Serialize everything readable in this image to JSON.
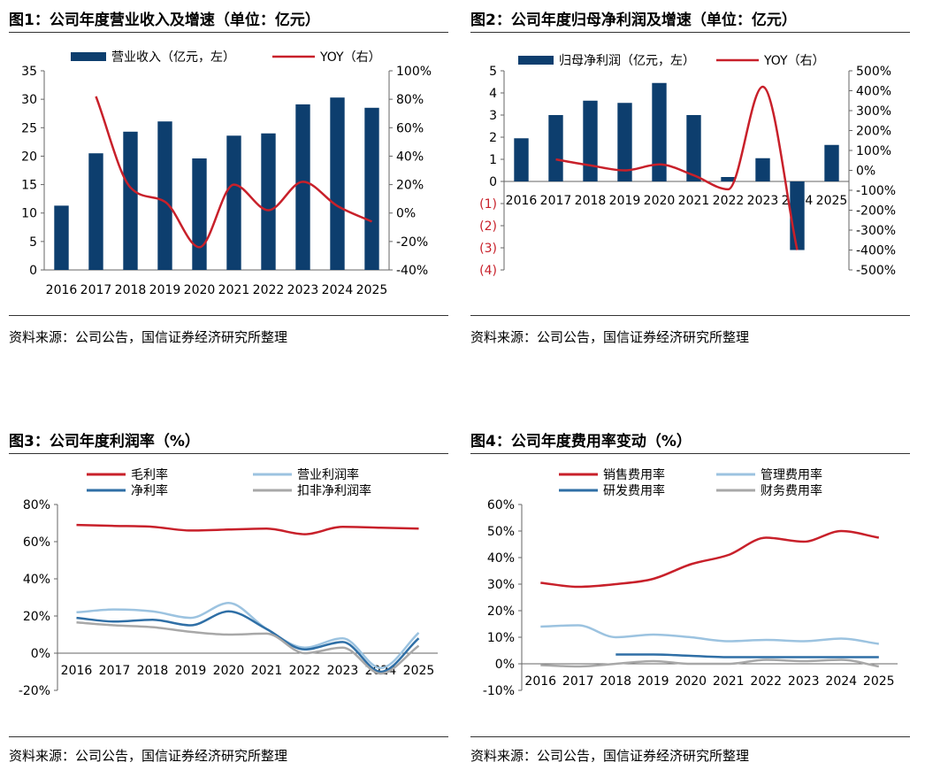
{
  "colors": {
    "navy": "#0d3e6e",
    "red": "#c8202a",
    "lightblue": "#9cc3e0",
    "blue": "#2f6fa6",
    "gray": "#a8a8a8",
    "neg": "#c8202a"
  },
  "source_text": "资料来源：公司公告，国信证券经济研究所整理",
  "chart_data": [
    {
      "id": "fig1",
      "title": "图1：公司年度营业收入及增速（单位：亿元）",
      "type": "bar+line",
      "categories": [
        "2016",
        "2017",
        "2018",
        "2019",
        "2020",
        "2021",
        "2022",
        "2023",
        "2024",
        "2025"
      ],
      "y_left": {
        "min": 0,
        "max": 35,
        "ticks": [
          0,
          5,
          10,
          15,
          20,
          25,
          30,
          35
        ],
        "labels": [
          "0",
          "5",
          "10",
          "15",
          "20",
          "25",
          "30",
          "35"
        ]
      },
      "y_right": {
        "min": -40,
        "max": 100,
        "ticks": [
          -40,
          -20,
          0,
          20,
          40,
          60,
          80,
          100
        ],
        "labels": [
          "-40%",
          "-20%",
          "0%",
          "20%",
          "40%",
          "60%",
          "80%",
          "100%"
        ]
      },
      "series": [
        {
          "name": "营业收入（亿元，左）",
          "type": "bar",
          "axis": "left",
          "color": "#0d3e6e",
          "values": [
            11.3,
            20.5,
            24.3,
            26.1,
            19.6,
            23.6,
            24.0,
            29.1,
            30.3,
            28.5
          ]
        },
        {
          "name": "YOY（右）",
          "type": "line",
          "axis": "right",
          "color": "#c8202a",
          "values": [
            null,
            82,
            18,
            8,
            -24,
            20,
            2,
            22,
            5,
            -6
          ]
        }
      ]
    },
    {
      "id": "fig2",
      "title": "图2：公司年度归母净利润及增速（单位：亿元）",
      "type": "bar+line",
      "categories": [
        "2016",
        "2017",
        "2018",
        "2019",
        "2020",
        "2021",
        "2022",
        "2023",
        "2024",
        "2025"
      ],
      "y_left": {
        "min": -4,
        "max": 5,
        "ticks": [
          -4,
          -3,
          -2,
          -1,
          0,
          1,
          2,
          3,
          4,
          5
        ],
        "labels": [
          "(4)",
          "(3)",
          "(2)",
          "(1)",
          "0",
          "1",
          "2",
          "3",
          "4",
          "5"
        ]
      },
      "y_right": {
        "min": -500,
        "max": 500,
        "ticks": [
          -500,
          -400,
          -300,
          -200,
          -100,
          0,
          100,
          200,
          300,
          400,
          500
        ],
        "labels": [
          "-500%",
          "-400%",
          "-300%",
          "-200%",
          "-100%",
          "0%",
          "100%",
          "200%",
          "300%",
          "400%",
          "500%"
        ]
      },
      "series": [
        {
          "name": "归母净利润（亿元，左）",
          "type": "bar",
          "axis": "left",
          "color": "#0d3e6e",
          "values": [
            1.95,
            3.0,
            3.65,
            3.55,
            4.45,
            3.0,
            0.2,
            1.05,
            -3.1,
            1.65
          ]
        },
        {
          "name": "YOY（右）",
          "type": "line",
          "axis": "right",
          "color": "#c8202a",
          "values": [
            null,
            55,
            25,
            0,
            30,
            -25,
            -95,
            420,
            -400,
            null
          ]
        }
      ]
    },
    {
      "id": "fig3",
      "title": "图3：公司年度利润率（%）",
      "type": "line",
      "categories": [
        "2016",
        "2017",
        "2018",
        "2019",
        "2020",
        "2021",
        "2022",
        "2023",
        "2024",
        "2025"
      ],
      "y": {
        "min": -20,
        "max": 80,
        "ticks": [
          -20,
          0,
          20,
          40,
          60,
          80
        ],
        "labels": [
          "-20%",
          "0%",
          "20%",
          "40%",
          "60%",
          "80%"
        ]
      },
      "series": [
        {
          "name": "毛利率",
          "color": "#c8202a",
          "values": [
            69,
            68.5,
            68,
            66,
            66.5,
            67,
            64,
            68,
            67.5,
            67
          ]
        },
        {
          "name": "营业利润率",
          "color": "#9cc3e0",
          "values": [
            22,
            23.5,
            22.5,
            19,
            27,
            13,
            3,
            8,
            -8,
            11
          ]
        },
        {
          "name": "净利率",
          "color": "#2f6fa6",
          "values": [
            19,
            17,
            18,
            15,
            22.5,
            13,
            2,
            6,
            -10,
            8
          ]
        },
        {
          "name": "扣非净利润率",
          "color": "#a8a8a8",
          "values": [
            16.5,
            15,
            14,
            11.5,
            10,
            10.5,
            0,
            3,
            -11,
            4
          ]
        }
      ]
    },
    {
      "id": "fig4",
      "title": "图4：公司年度费用率变动（%）",
      "type": "line",
      "categories": [
        "2016",
        "2017",
        "2018",
        "2019",
        "2020",
        "2021",
        "2022",
        "2023",
        "2024",
        "2025"
      ],
      "y": {
        "min": -10,
        "max": 60,
        "ticks": [
          -10,
          0,
          10,
          20,
          30,
          40,
          50,
          60
        ],
        "labels": [
          "-10%",
          "0%",
          "10%",
          "20%",
          "30%",
          "40%",
          "50%",
          "60%"
        ]
      },
      "series": [
        {
          "name": "销售费用率",
          "color": "#c8202a",
          "values": [
            30.5,
            29,
            30,
            32,
            37.5,
            41,
            47.5,
            46,
            50,
            47.5
          ]
        },
        {
          "name": "管理费用率",
          "color": "#9cc3e0",
          "values": [
            14,
            14.5,
            10,
            11,
            10,
            8.5,
            9,
            8.5,
            9.5,
            7.5
          ]
        },
        {
          "name": "研发费用率",
          "color": "#2f6fa6",
          "values": [
            null,
            null,
            3.5,
            3.5,
            3,
            2.5,
            2.5,
            2.5,
            2.5,
            2.5
          ]
        },
        {
          "name": "财务费用率",
          "color": "#a8a8a8",
          "values": [
            -0.5,
            -1,
            0,
            1,
            0,
            0,
            1.5,
            1,
            1.5,
            -1
          ]
        }
      ]
    }
  ]
}
